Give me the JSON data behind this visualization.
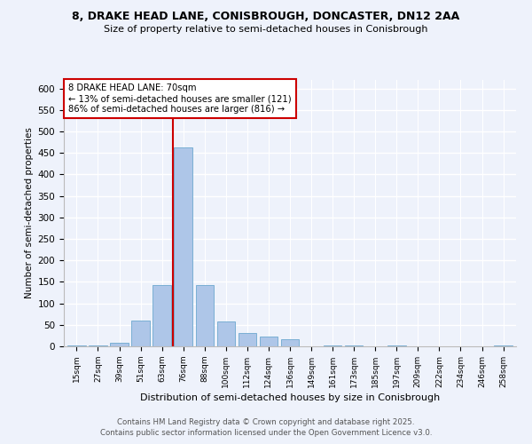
{
  "title_line1": "8, DRAKE HEAD LANE, CONISBROUGH, DONCASTER, DN12 2AA",
  "title_line2": "Size of property relative to semi-detached houses in Conisbrough",
  "xlabel": "Distribution of semi-detached houses by size in Conisbrough",
  "ylabel": "Number of semi-detached properties",
  "categories": [
    "15sqm",
    "27sqm",
    "39sqm",
    "51sqm",
    "63sqm",
    "76sqm",
    "88sqm",
    "100sqm",
    "112sqm",
    "124sqm",
    "136sqm",
    "149sqm",
    "161sqm",
    "173sqm",
    "185sqm",
    "197sqm",
    "209sqm",
    "222sqm",
    "234sqm",
    "246sqm",
    "258sqm"
  ],
  "values": [
    2,
    3,
    8,
    60,
    142,
    462,
    142,
    58,
    30,
    22,
    17,
    0,
    2,
    2,
    1,
    2,
    0,
    1,
    1,
    0,
    2
  ],
  "bar_color": "#aec6e8",
  "bar_edge_color": "#7aafd4",
  "property_line_x": 4.5,
  "annotation_title": "8 DRAKE HEAD LANE: 70sqm",
  "annotation_line2": "← 13% of semi-detached houses are smaller (121)",
  "annotation_line3": "86% of semi-detached houses are larger (816) →",
  "annotation_box_color": "#ffffff",
  "annotation_box_edge": "#cc0000",
  "red_line_color": "#cc0000",
  "ylim": [
    0,
    620
  ],
  "yticks": [
    0,
    50,
    100,
    150,
    200,
    250,
    300,
    350,
    400,
    450,
    500,
    550,
    600
  ],
  "footer_line1": "Contains HM Land Registry data © Crown copyright and database right 2025.",
  "footer_line2": "Contains public sector information licensed under the Open Government Licence v3.0.",
  "background_color": "#eef2fb",
  "grid_color": "#ffffff"
}
